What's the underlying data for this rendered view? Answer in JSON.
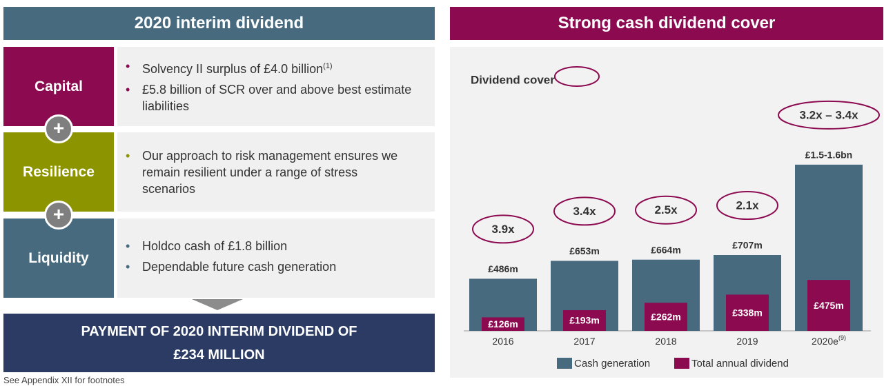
{
  "left_panel": {
    "title": "2020 interim dividend",
    "sections": [
      {
        "label": "Capital",
        "color": "#8b0a50",
        "bullets": [
          {
            "text": "Solvency II surplus of £4.0 billion",
            "superscript": "(1)"
          },
          {
            "text": "£5.8 billion of SCR over and above best estimate liabilities"
          }
        ]
      },
      {
        "label": "Resilience",
        "color": "#8c9400",
        "bullets": [
          {
            "text": "Our approach to risk management ensures we remain resilient under a range of stress scenarios"
          }
        ]
      },
      {
        "label": "Liquidity",
        "color": "#476a7f",
        "bullets": [
          {
            "text": "Holdco cash of £1.8 billion"
          },
          {
            "text": "Dependable future cash generation"
          }
        ]
      }
    ],
    "payment_lines": [
      "PAYMENT OF 2020 INTERIM DIVIDEND OF",
      "£234 MILLION"
    ],
    "footnote": "See Appendix XII for footnotes"
  },
  "chart_data": {
    "type": "bar",
    "title": "Strong cash dividend cover",
    "cover_title": "Dividend cover",
    "categories": [
      "2016",
      "2017",
      "2018",
      "2019",
      "2020e"
    ],
    "last_category_superscript": "(9)",
    "cover_labels": [
      "3.9x",
      "3.4x",
      "2.5x",
      "2.1x",
      "3.2x – 3.4x"
    ],
    "ylim": [
      0,
      1800
    ],
    "series": [
      {
        "name": "Cash generation",
        "color": "#476a7f",
        "values": [
          486,
          653,
          664,
          707,
          1550
        ],
        "value_labels": [
          "£486m",
          "£653m",
          "£664m",
          "£707m",
          "£1.5-1.6bn"
        ]
      },
      {
        "name": "Total annual dividend",
        "color": "#8b0a50",
        "values": [
          126,
          193,
          262,
          338,
          475
        ],
        "value_labels": [
          "£126m",
          "£193m",
          "£262m",
          "£338m",
          "£475m"
        ]
      }
    ]
  }
}
